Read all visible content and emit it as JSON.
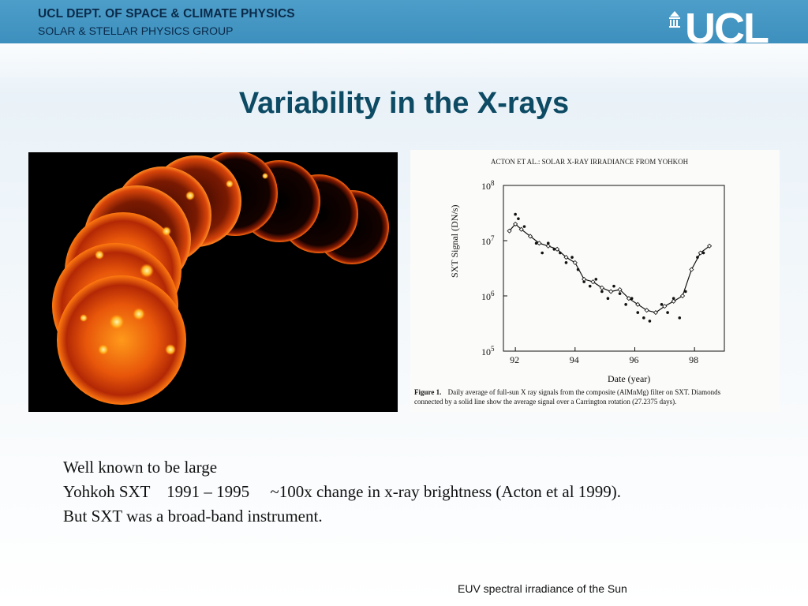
{
  "header": {
    "department": "UCL DEPT. OF SPACE & CLIMATE PHYSICS",
    "group": "SOLAR & STELLAR PHYSICS GROUP",
    "logo_text": "UCL",
    "color": "#4d9ec9"
  },
  "slide": {
    "title": "Variability in the X-rays",
    "lines": [
      "Well known to be large",
      "Yohkoh SXT    1991 – 1995     ~100x change in x-ray brightness (Acton et al 1999).",
      "But SXT was a broad-band instrument."
    ],
    "footer": "EUV spectral irradiance of the Sun"
  },
  "figure": {
    "header": "ACTON ET AL.: SOLAR X-RAY IRRADIANCE FROM YOHKOH",
    "caption_label": "Figure 1.",
    "caption_line1": "Daily average of full-sun X ray signals from the composite (AlMnMg) filter on SXT. Diamonds",
    "caption_line2": "connected by a solid line show the average signal over a Carrington rotation (27.2375 days).",
    "chart_data": {
      "type": "scatter",
      "xlabel": "Date (year)",
      "ylabel": "SXT Signal (DN/s)",
      "xlim": [
        91.6,
        99.0
      ],
      "ylim": [
        100000,
        100000000
      ],
      "yscale": "log",
      "x_ticks": [
        92,
        94,
        96,
        98
      ],
      "x_tick_labels": [
        "92",
        "94",
        "96",
        "98"
      ],
      "y_ticks": [
        100000,
        1000000,
        10000000,
        100000000
      ],
      "y_tick_labels": [
        "10^5",
        "10^6",
        "10^7",
        "10^8"
      ],
      "series": [
        {
          "style": "points",
          "x": [
            91.8,
            92.0,
            92.1,
            92.3,
            92.5,
            92.7,
            92.9,
            93.1,
            93.3,
            93.5,
            93.7,
            93.9,
            94.1,
            94.3,
            94.5,
            94.7,
            94.9,
            95.1,
            95.3,
            95.5,
            95.7,
            95.9,
            96.1,
            96.3,
            96.5,
            96.7,
            96.9,
            97.1,
            97.3,
            97.5,
            97.7,
            97.9,
            98.1,
            98.3,
            98.5
          ],
          "y": [
            15000000,
            30000000,
            25000000,
            18000000,
            12000000,
            9000000,
            6000000,
            9000000,
            7000000,
            6000000,
            4000000,
            5000000,
            3000000,
            1800000,
            1500000,
            2000000,
            1200000,
            900000,
            1500000,
            1100000,
            700000,
            900000,
            500000,
            400000,
            350000,
            500000,
            700000,
            500000,
            900000,
            400000,
            1200000,
            3000000,
            5000000,
            6000000,
            8000000
          ]
        },
        {
          "style": "line",
          "x": [
            91.8,
            92.0,
            92.2,
            92.5,
            92.8,
            93.1,
            93.4,
            93.7,
            94.0,
            94.3,
            94.6,
            94.9,
            95.2,
            95.5,
            95.8,
            96.1,
            96.4,
            96.7,
            97.0,
            97.3,
            97.6,
            97.9,
            98.2,
            98.5
          ],
          "y": [
            15000000,
            20000000,
            16000000,
            12000000,
            9000000,
            8000000,
            7000000,
            5000000,
            4000000,
            2000000,
            1800000,
            1400000,
            1200000,
            1300000,
            900000,
            700000,
            550000,
            500000,
            650000,
            800000,
            1000000,
            3000000,
            6000000,
            8000000
          ]
        }
      ]
    }
  }
}
